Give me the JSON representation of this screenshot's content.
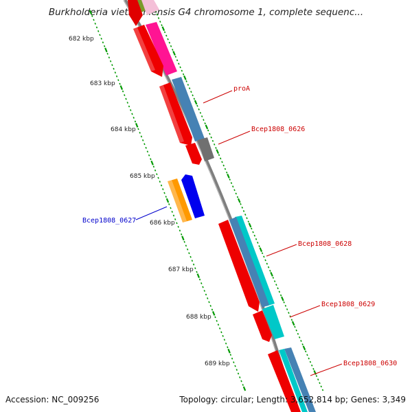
{
  "header": {
    "title": "Burkholderia vietnamiensis G4 chromosome 1, complete sequenc..."
  },
  "footer": {
    "accession": "Accession: NC_009256",
    "summary": "Topology: circular; Length: 3,652,814 bp; Genes: 3,349"
  },
  "ruler": {
    "ticks": [
      {
        "label": "682 kbp"
      },
      {
        "label": "683 kbp"
      },
      {
        "label": "684 kbp"
      },
      {
        "label": "685 kbp"
      },
      {
        "label": "686 kbp"
      },
      {
        "label": "687 kbp"
      },
      {
        "label": "688 kbp"
      },
      {
        "label": "689 kbp"
      }
    ]
  },
  "gene_labels": [
    {
      "text": "proA",
      "color": "#cc0000"
    },
    {
      "text": "Bcep1808_0626",
      "color": "#cc0000"
    },
    {
      "text": "Bcep1808_0627",
      "color": "#0000cc"
    },
    {
      "text": "Bcep1808_0628",
      "color": "#cc0000"
    },
    {
      "text": "Bcep1808_0629",
      "color": "#cc0000"
    },
    {
      "text": "Bcep1808_0630",
      "color": "#cc0000"
    }
  ],
  "colors": {
    "backbone": "#7f7f7f",
    "gene_forward": "#ff0000",
    "gene_reverse_blue": "#0000ff",
    "gene_reverse_orange": "#ff9900",
    "feature_steelblue": "#4682b4",
    "feature_cyan": "#00c8c8",
    "feature_magenta": "#ff1493",
    "feature_gray": "#707070",
    "feature_olive": "#7a9a2a",
    "tick_green": "#009900"
  }
}
